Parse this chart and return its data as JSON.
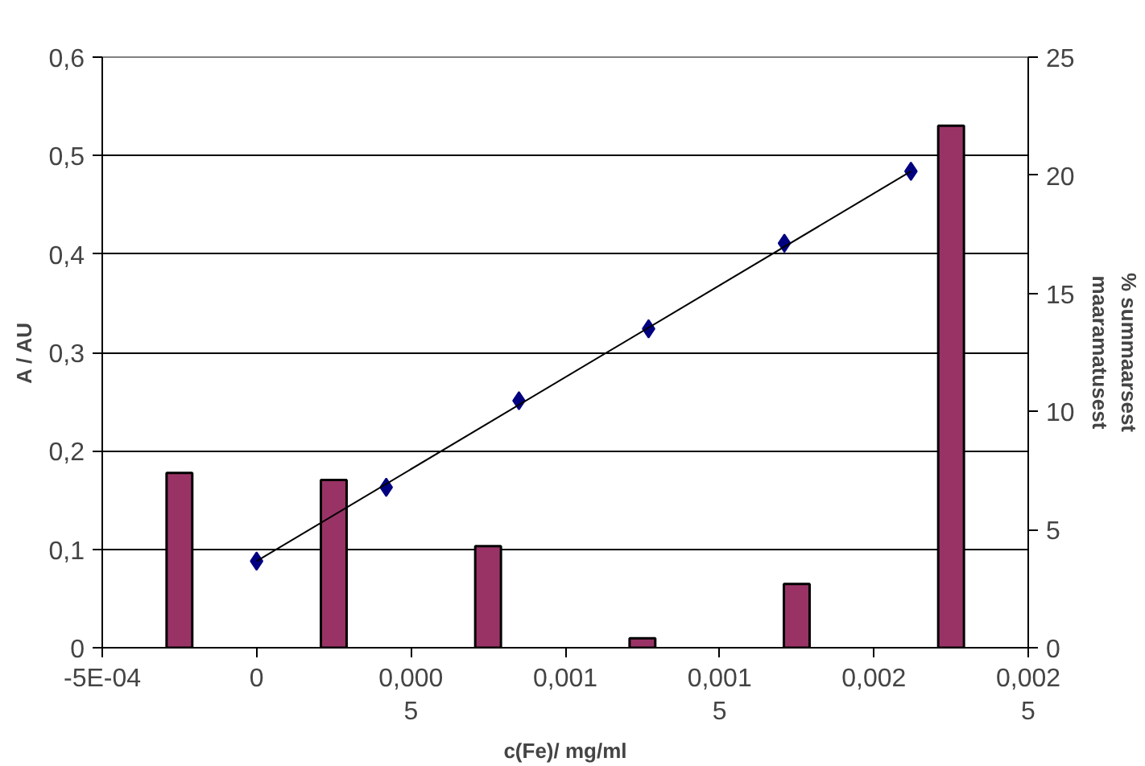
{
  "chart_data": {
    "type": "scatter",
    "xlabel": "c(Fe)/ mg/ml",
    "ylabel": "A / AU",
    "y2label": "% summaarsest\nmaaramatusest",
    "xlim": [
      -0.0005,
      0.0025
    ],
    "xticks": [
      {
        "value": -0.0005,
        "label": "-5E-04"
      },
      {
        "value": 0,
        "label": "0"
      },
      {
        "value": 0.0005,
        "label": "0,000\n5"
      },
      {
        "value": 0.001,
        "label": "0,001"
      },
      {
        "value": 0.0015,
        "label": "0,001\n5"
      },
      {
        "value": 0.002,
        "label": "0,002"
      },
      {
        "value": 0.0025,
        "label": "0,002\n5"
      }
    ],
    "ylim": [
      0,
      0.6
    ],
    "yticks": [
      {
        "value": 0,
        "label": "0"
      },
      {
        "value": 0.1,
        "label": "0,1"
      },
      {
        "value": 0.2,
        "label": "0,2"
      },
      {
        "value": 0.3,
        "label": "0,3"
      },
      {
        "value": 0.4,
        "label": "0,4"
      },
      {
        "value": 0.5,
        "label": "0,5"
      },
      {
        "value": 0.6,
        "label": "0,6"
      }
    ],
    "y2lim": [
      0,
      25
    ],
    "y2ticks": [
      0,
      5,
      10,
      15,
      20,
      25
    ],
    "grid": "y",
    "marker": "diamond",
    "series": [
      {
        "type": "bar",
        "axis": "y2",
        "color": "#993366",
        "x": [
          -0.00025,
          0.00025,
          0.00075,
          0.00125,
          0.00175,
          0.00225
        ],
        "values": [
          7.4,
          7.1,
          4.3,
          0.4,
          2.7,
          22.1
        ]
      },
      {
        "color": "#000080",
        "x": [
          0,
          0.00042,
          0.00085,
          0.00127,
          0.00171,
          0.00212
        ],
        "values": [
          0.088,
          0.163,
          0.251,
          0.324,
          0.411,
          0.484
        ]
      },
      {
        "type": "line",
        "marker": "none",
        "color": "#000000",
        "x": [
          0,
          0.00212
        ],
        "values": [
          0.088,
          0.484
        ]
      }
    ]
  }
}
